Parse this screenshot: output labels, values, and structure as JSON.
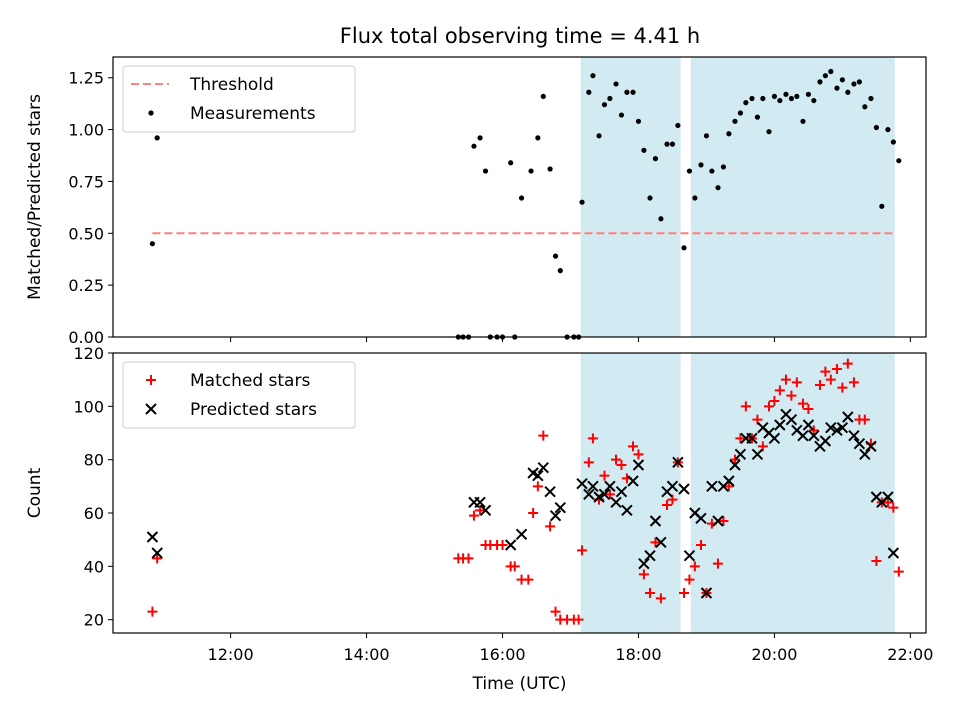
{
  "figure_title": "Flux total observing time = 4.41 h",
  "colors": {
    "threshold": "#ff7f7f",
    "measurement": "#000000",
    "matched": "#ff0000",
    "predicted": "#000000",
    "shade": "#add8e6"
  },
  "chart_data": [
    {
      "type": "scatter",
      "title": "Flux total observing time = 4.41 h",
      "xlabel": "",
      "ylabel": "Matched/Predicted stars",
      "x_unit": "hours UTC",
      "xlim": [
        10.27,
        22.23
      ],
      "ylim": [
        0,
        1.35
      ],
      "yticks": [
        0.0,
        0.25,
        0.5,
        0.75,
        1.0,
        1.25
      ],
      "ytick_labels": [
        "0.00",
        "0.25",
        "0.50",
        "0.75",
        "1.00",
        "1.25"
      ],
      "shaded_intervals": [
        [
          17.15,
          18.62
        ],
        [
          18.77,
          21.77
        ]
      ],
      "legend": {
        "placement": "top-left",
        "entries": [
          "Threshold",
          "Measurements"
        ]
      },
      "threshold": {
        "name": "Threshold",
        "y": 0.5,
        "x": [
          10.85,
          21.77
        ]
      },
      "series": [
        {
          "name": "Measurements",
          "points": [
            [
              10.85,
              0.45
            ],
            [
              10.92,
              0.96
            ],
            [
              15.35,
              0
            ],
            [
              15.42,
              0
            ],
            [
              15.5,
              0
            ],
            [
              15.58,
              0.92
            ],
            [
              15.67,
              0.96
            ],
            [
              15.75,
              0.8
            ],
            [
              15.82,
              0
            ],
            [
              15.92,
              0
            ],
            [
              16.0,
              0
            ],
            [
              16.12,
              0.84
            ],
            [
              16.18,
              0
            ],
            [
              16.28,
              0.67
            ],
            [
              16.42,
              0.8
            ],
            [
              16.52,
              0.96
            ],
            [
              16.6,
              1.16
            ],
            [
              16.7,
              0.81
            ],
            [
              16.78,
              0.39
            ],
            [
              16.85,
              0.32
            ],
            [
              16.95,
              0
            ],
            [
              17.05,
              0
            ],
            [
              17.12,
              0
            ],
            [
              17.17,
              0.65
            ],
            [
              17.27,
              1.18
            ],
            [
              17.33,
              1.26
            ],
            [
              17.42,
              0.97
            ],
            [
              17.5,
              1.12
            ],
            [
              17.58,
              1.15
            ],
            [
              17.67,
              1.22
            ],
            [
              17.75,
              1.07
            ],
            [
              17.83,
              1.18
            ],
            [
              17.92,
              1.18
            ],
            [
              18.0,
              1.04
            ],
            [
              18.08,
              0.9
            ],
            [
              18.17,
              0.67
            ],
            [
              18.25,
              0.86
            ],
            [
              18.33,
              0.57
            ],
            [
              18.42,
              0.93
            ],
            [
              18.5,
              0.93
            ],
            [
              18.58,
              1.02
            ],
            [
              18.67,
              0.43
            ],
            [
              18.75,
              0.8
            ],
            [
              18.83,
              0.67
            ],
            [
              18.92,
              0.83
            ],
            [
              19.0,
              0.97
            ],
            [
              19.08,
              0.8
            ],
            [
              19.17,
              0.72
            ],
            [
              19.25,
              0.82
            ],
            [
              19.33,
              0.98
            ],
            [
              19.42,
              1.04
            ],
            [
              19.5,
              1.08
            ],
            [
              19.58,
              1.13
            ],
            [
              19.67,
              1.15
            ],
            [
              19.75,
              1.06
            ],
            [
              19.83,
              1.15
            ],
            [
              19.92,
              0.99
            ],
            [
              20.0,
              1.16
            ],
            [
              20.08,
              1.14
            ],
            [
              20.17,
              1.17
            ],
            [
              20.25,
              1.15
            ],
            [
              20.33,
              1.16
            ],
            [
              20.42,
              1.04
            ],
            [
              20.5,
              1.17
            ],
            [
              20.58,
              1.14
            ],
            [
              20.67,
              1.23
            ],
            [
              20.75,
              1.26
            ],
            [
              20.83,
              1.28
            ],
            [
              20.92,
              1.2
            ],
            [
              21.0,
              1.24
            ],
            [
              21.08,
              1.18
            ],
            [
              21.17,
              1.22
            ],
            [
              21.25,
              1.23
            ],
            [
              21.33,
              1.11
            ],
            [
              21.42,
              1.15
            ],
            [
              21.5,
              1.01
            ],
            [
              21.58,
              0.63
            ],
            [
              21.67,
              1.0
            ],
            [
              21.75,
              0.94
            ],
            [
              21.83,
              0.85
            ]
          ]
        }
      ]
    },
    {
      "type": "scatter",
      "title": "",
      "xlabel": "Time (UTC)",
      "ylabel": "Count",
      "x_unit": "hours UTC",
      "xlim": [
        10.27,
        22.23
      ],
      "ylim": [
        15,
        120
      ],
      "xticks": [
        12,
        14,
        16,
        18,
        20,
        22
      ],
      "xtick_labels": [
        "12:00",
        "14:00",
        "16:00",
        "18:00",
        "20:00",
        "22:00"
      ],
      "yticks": [
        20,
        40,
        60,
        80,
        100,
        120
      ],
      "ytick_labels": [
        "20",
        "40",
        "60",
        "80",
        "100",
        "120"
      ],
      "shaded_intervals": [
        [
          17.15,
          18.62
        ],
        [
          18.77,
          21.77
        ]
      ],
      "legend": {
        "placement": "top-left",
        "entries": [
          "Matched stars",
          "Predicted stars"
        ]
      },
      "series": [
        {
          "name": "Matched stars",
          "marker": "plus",
          "points": [
            [
              10.85,
              23
            ],
            [
              10.92,
              43
            ],
            [
              15.35,
              43
            ],
            [
              15.42,
              43
            ],
            [
              15.5,
              43
            ],
            [
              15.58,
              59
            ],
            [
              15.67,
              61
            ],
            [
              15.75,
              48
            ],
            [
              15.82,
              48
            ],
            [
              15.92,
              48
            ],
            [
              16.0,
              48
            ],
            [
              16.12,
              40
            ],
            [
              16.18,
              40
            ],
            [
              16.28,
              35
            ],
            [
              16.38,
              35
            ],
            [
              16.45,
              60
            ],
            [
              16.52,
              70
            ],
            [
              16.6,
              89
            ],
            [
              16.7,
              55
            ],
            [
              16.78,
              23
            ],
            [
              16.85,
              20
            ],
            [
              16.95,
              20
            ],
            [
              17.05,
              20
            ],
            [
              17.12,
              20
            ],
            [
              17.17,
              46
            ],
            [
              17.27,
              79
            ],
            [
              17.33,
              88
            ],
            [
              17.42,
              65
            ],
            [
              17.5,
              74
            ],
            [
              17.58,
              67
            ],
            [
              17.67,
              80
            ],
            [
              17.75,
              78
            ],
            [
              17.83,
              73
            ],
            [
              17.92,
              85
            ],
            [
              18.0,
              82
            ],
            [
              18.08,
              37
            ],
            [
              18.17,
              30
            ],
            [
              18.25,
              49
            ],
            [
              18.33,
              28
            ],
            [
              18.42,
              63
            ],
            [
              18.5,
              65
            ],
            [
              18.58,
              79
            ],
            [
              18.67,
              30
            ],
            [
              18.75,
              35
            ],
            [
              18.83,
              40
            ],
            [
              18.92,
              48
            ],
            [
              19.0,
              30
            ],
            [
              19.08,
              56
            ],
            [
              19.17,
              41
            ],
            [
              19.25,
              57
            ],
            [
              19.33,
              70
            ],
            [
              19.42,
              80
            ],
            [
              19.5,
              88
            ],
            [
              19.58,
              100
            ],
            [
              19.67,
              88
            ],
            [
              19.75,
              95
            ],
            [
              19.83,
              85
            ],
            [
              19.92,
              100
            ],
            [
              20.0,
              102
            ],
            [
              20.08,
              106
            ],
            [
              20.17,
              110
            ],
            [
              20.25,
              104
            ],
            [
              20.33,
              109
            ],
            [
              20.42,
              101
            ],
            [
              20.5,
              99
            ],
            [
              20.58,
              91
            ],
            [
              20.67,
              108
            ],
            [
              20.75,
              113
            ],
            [
              20.83,
              110
            ],
            [
              20.92,
              114
            ],
            [
              21.0,
              107
            ],
            [
              21.08,
              116
            ],
            [
              21.17,
              109
            ],
            [
              21.25,
              95
            ],
            [
              21.33,
              95
            ],
            [
              21.42,
              86
            ],
            [
              21.5,
              42
            ],
            [
              21.58,
              64
            ],
            [
              21.67,
              64
            ],
            [
              21.75,
              62
            ],
            [
              21.83,
              38
            ]
          ]
        },
        {
          "name": "Predicted stars",
          "marker": "x",
          "points": [
            [
              10.85,
              51
            ],
            [
              10.92,
              45
            ],
            [
              15.58,
              64
            ],
            [
              15.67,
              64
            ],
            [
              15.75,
              61
            ],
            [
              16.12,
              48
            ],
            [
              16.28,
              52
            ],
            [
              16.45,
              75
            ],
            [
              16.52,
              74
            ],
            [
              16.6,
              77
            ],
            [
              16.7,
              68
            ],
            [
              16.78,
              59
            ],
            [
              16.85,
              62
            ],
            [
              17.17,
              71
            ],
            [
              17.27,
              67
            ],
            [
              17.33,
              70
            ],
            [
              17.42,
              66
            ],
            [
              17.5,
              67
            ],
            [
              17.58,
              70
            ],
            [
              17.67,
              64
            ],
            [
              17.75,
              68
            ],
            [
              17.83,
              61
            ],
            [
              17.92,
              72
            ],
            [
              18.0,
              78
            ],
            [
              18.08,
              41
            ],
            [
              18.17,
              44
            ],
            [
              18.25,
              57
            ],
            [
              18.33,
              49
            ],
            [
              18.42,
              68
            ],
            [
              18.5,
              70
            ],
            [
              18.58,
              79
            ],
            [
              18.67,
              69
            ],
            [
              18.75,
              44
            ],
            [
              18.83,
              60
            ],
            [
              18.92,
              58
            ],
            [
              19.0,
              30
            ],
            [
              19.08,
              70
            ],
            [
              19.17,
              57
            ],
            [
              19.25,
              70
            ],
            [
              19.33,
              72
            ],
            [
              19.42,
              78
            ],
            [
              19.5,
              82
            ],
            [
              19.58,
              88
            ],
            [
              19.67,
              88
            ],
            [
              19.75,
              82
            ],
            [
              19.83,
              92
            ],
            [
              19.92,
              90
            ],
            [
              20.0,
              88
            ],
            [
              20.08,
              93
            ],
            [
              20.17,
              97
            ],
            [
              20.25,
              95
            ],
            [
              20.33,
              91
            ],
            [
              20.42,
              89
            ],
            [
              20.5,
              93
            ],
            [
              20.58,
              89
            ],
            [
              20.67,
              85
            ],
            [
              20.75,
              87
            ],
            [
              20.83,
              92
            ],
            [
              20.92,
              91
            ],
            [
              21.0,
              92
            ],
            [
              21.08,
              96
            ],
            [
              21.17,
              89
            ],
            [
              21.25,
              86
            ],
            [
              21.33,
              82
            ],
            [
              21.42,
              85
            ],
            [
              21.5,
              66
            ],
            [
              21.58,
              64
            ],
            [
              21.67,
              66
            ],
            [
              21.75,
              45
            ]
          ]
        }
      ]
    }
  ]
}
